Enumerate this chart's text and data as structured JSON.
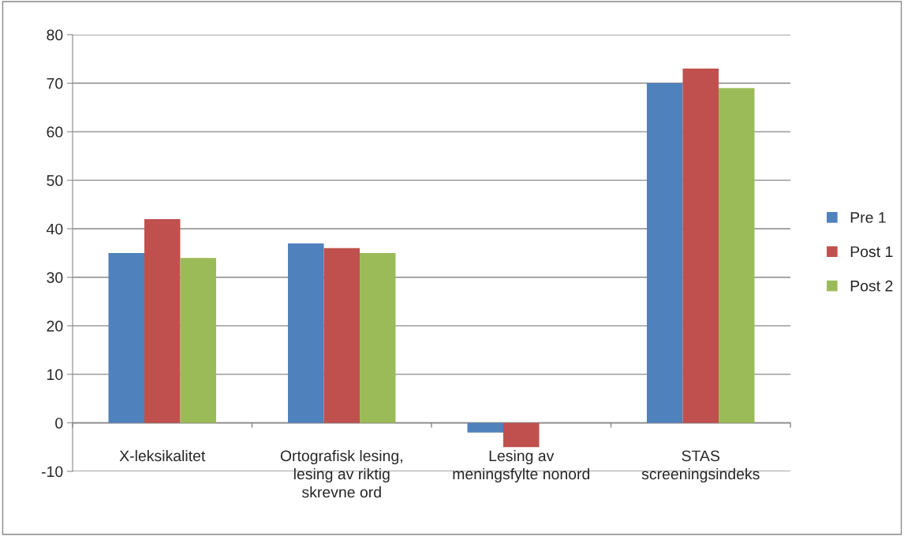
{
  "chart_data": {
    "type": "bar",
    "categories": [
      "X-leksikalitet",
      "Ortografisk lesing,\nlesing av riktig\nskrevne ord",
      "Lesing av\nmeningsfylte nonord",
      "STAS\nscreeningsindeks"
    ],
    "series": [
      {
        "name": "Pre 1",
        "color": "#4f81bd",
        "values": [
          35,
          37,
          -2,
          70
        ]
      },
      {
        "name": "Post 1",
        "color": "#c0504d",
        "values": [
          42,
          36,
          -5,
          73
        ]
      },
      {
        "name": "Post 2",
        "color": "#9bbb59",
        "values": [
          34,
          35,
          null,
          69
        ]
      }
    ],
    "ylim": [
      -10,
      80
    ],
    "yticks": [
      -10,
      0,
      10,
      20,
      30,
      40,
      50,
      60,
      70,
      80
    ],
    "grid": "y",
    "legend": "right"
  }
}
